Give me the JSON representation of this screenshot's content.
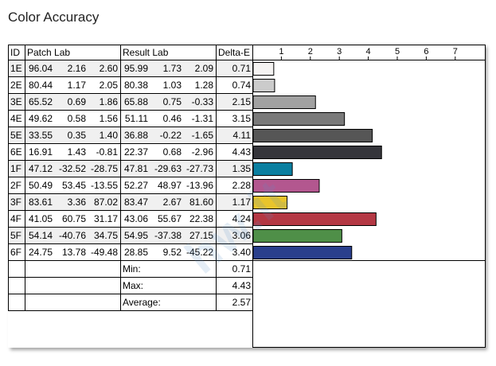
{
  "title": "Color Accuracy",
  "watermark": "hw.it",
  "headers": {
    "id": "ID",
    "patch": "Patch Lab",
    "result": "Result Lab",
    "delta": "Delta-E"
  },
  "rows": [
    {
      "id": "1E",
      "patch": [
        "96.04",
        "2.16",
        "2.60"
      ],
      "result": [
        "95.99",
        "1.73",
        "2.09"
      ],
      "delta": "0.71",
      "color": "#f5f3f2"
    },
    {
      "id": "2E",
      "patch": [
        "80.44",
        "1.17",
        "2.05"
      ],
      "result": [
        "80.38",
        "1.03",
        "1.28"
      ],
      "delta": "0.74",
      "color": "#cbcbcb"
    },
    {
      "id": "3E",
      "patch": [
        "65.52",
        "0.69",
        "1.86"
      ],
      "result": [
        "65.88",
        "0.75",
        "-0.33"
      ],
      "delta": "2.15",
      "color": "#a1a1a1"
    },
    {
      "id": "4E",
      "patch": [
        "49.62",
        "0.58",
        "1.56"
      ],
      "result": [
        "51.11",
        "0.46",
        "-1.31"
      ],
      "delta": "3.15",
      "color": "#7a7a7a"
    },
    {
      "id": "5E",
      "patch": [
        "33.55",
        "0.35",
        "1.40"
      ],
      "result": [
        "36.88",
        "-0.22",
        "-1.65"
      ],
      "delta": "4.11",
      "color": "#565656"
    },
    {
      "id": "6E",
      "patch": [
        "16.91",
        "1.43",
        "-0.81"
      ],
      "result": [
        "22.37",
        "0.68",
        "-2.96"
      ],
      "delta": "4.43",
      "color": "#35353b"
    },
    {
      "id": "1F",
      "patch": [
        "47.12",
        "-32.52",
        "-28.75"
      ],
      "result": [
        "47.81",
        "-29.63",
        "-27.73"
      ],
      "delta": "1.35",
      "color": "#0a7fa0"
    },
    {
      "id": "2F",
      "patch": [
        "50.49",
        "53.45",
        "-13.55"
      ],
      "result": [
        "52.27",
        "48.97",
        "-13.96"
      ],
      "delta": "2.28",
      "color": "#b3578f"
    },
    {
      "id": "3F",
      "patch": [
        "83.61",
        "3.36",
        "87.02"
      ],
      "result": [
        "83.47",
        "2.67",
        "81.60"
      ],
      "delta": "1.17",
      "color": "#e8c42c"
    },
    {
      "id": "4F",
      "patch": [
        "41.05",
        "60.75",
        "31.17"
      ],
      "result": [
        "43.06",
        "55.67",
        "22.38"
      ],
      "delta": "4.24",
      "color": "#b43844"
    },
    {
      "id": "5F",
      "patch": [
        "54.14",
        "-40.76",
        "34.75"
      ],
      "result": [
        "54.95",
        "-37.38",
        "27.15"
      ],
      "delta": "3.06",
      "color": "#4f8f48"
    },
    {
      "id": "6F",
      "patch": [
        "24.75",
        "13.78",
        "-49.48"
      ],
      "result": [
        "28.85",
        "9.52",
        "-45.22"
      ],
      "delta": "3.40",
      "color": "#2a3f8c"
    }
  ],
  "summary": [
    {
      "label": "Min:",
      "value": "0.71"
    },
    {
      "label": "Max:",
      "value": "4.43"
    },
    {
      "label": "Average:",
      "value": "2.57"
    }
  ],
  "chart_data": {
    "type": "bar",
    "orientation": "horizontal",
    "title": "Color Accuracy",
    "categories": [
      "1E",
      "2E",
      "3E",
      "4E",
      "5E",
      "6E",
      "1F",
      "2F",
      "3F",
      "4F",
      "5F",
      "6F"
    ],
    "values": [
      0.71,
      0.74,
      2.15,
      3.15,
      4.11,
      4.43,
      1.35,
      2.28,
      1.17,
      4.24,
      3.06,
      3.4
    ],
    "xlabel": "Delta-E",
    "xticks": [
      "1",
      "2",
      "3",
      "4",
      "5",
      "6",
      "7"
    ],
    "xlim": [
      0,
      7.8
    ],
    "grid": false
  }
}
